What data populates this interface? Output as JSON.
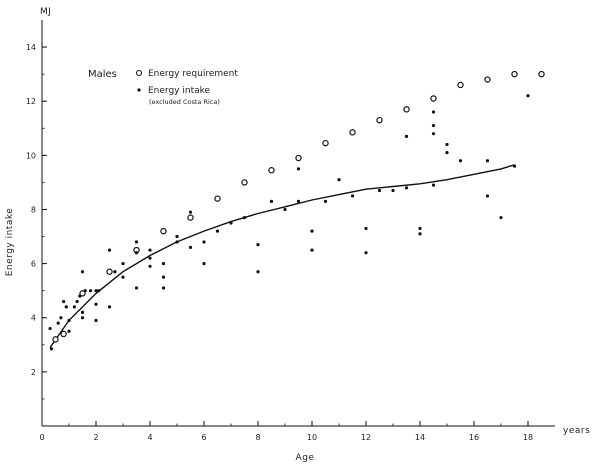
{
  "chart_data": {
    "type": "scatter",
    "unit_label": "MJ",
    "xlabel": "Age",
    "x_unit": "years",
    "ylabel": "Energy intake",
    "xlim": [
      0,
      19
    ],
    "ylim": [
      0,
      15
    ],
    "x_ticks": [
      0,
      2,
      4,
      6,
      8,
      10,
      12,
      14,
      16,
      18
    ],
    "y_ticks": [
      2,
      4,
      6,
      8,
      10,
      12,
      14
    ],
    "legend": {
      "title": "Males",
      "entries": [
        {
          "label": "Energy requirement",
          "marker": "open-circle"
        },
        {
          "label": "Energy intake",
          "marker": "dot",
          "note": "(excluded Costa Rica)"
        }
      ]
    },
    "series": [
      {
        "name": "Energy requirement",
        "marker": "open-circle",
        "points": [
          [
            0.5,
            3.2
          ],
          [
            0.8,
            3.4
          ],
          [
            1.5,
            4.9
          ],
          [
            2.5,
            5.7
          ],
          [
            3.5,
            6.5
          ],
          [
            4.5,
            7.2
          ],
          [
            5.5,
            7.7
          ],
          [
            6.5,
            8.4
          ],
          [
            7.5,
            9.0
          ],
          [
            8.5,
            9.45
          ],
          [
            9.5,
            9.9
          ],
          [
            10.5,
            10.45
          ],
          [
            11.5,
            10.85
          ],
          [
            12.5,
            11.3
          ],
          [
            13.5,
            11.7
          ],
          [
            14.5,
            12.1
          ],
          [
            15.5,
            12.6
          ],
          [
            16.5,
            12.8
          ],
          [
            17.5,
            13.0
          ],
          [
            18.5,
            13.0
          ]
        ]
      },
      {
        "name": "Energy intake",
        "marker": "dot",
        "points": [
          [
            0.3,
            3.6
          ],
          [
            0.35,
            2.85
          ],
          [
            0.6,
            3.8
          ],
          [
            0.7,
            4.0
          ],
          [
            0.8,
            4.6
          ],
          [
            0.9,
            4.4
          ],
          [
            1.0,
            3.9
          ],
          [
            1.0,
            3.5
          ],
          [
            1.2,
            4.4
          ],
          [
            1.3,
            4.6
          ],
          [
            1.4,
            4.8
          ],
          [
            1.5,
            5.7
          ],
          [
            1.5,
            4.2
          ],
          [
            1.5,
            4.0
          ],
          [
            1.6,
            5.0
          ],
          [
            1.8,
            5.0
          ],
          [
            2.0,
            5.0
          ],
          [
            2.0,
            4.5
          ],
          [
            2.0,
            3.9
          ],
          [
            2.1,
            5.0
          ],
          [
            2.5,
            6.5
          ],
          [
            2.5,
            4.4
          ],
          [
            2.7,
            5.7
          ],
          [
            3.0,
            6.0
          ],
          [
            3.0,
            5.5
          ],
          [
            3.5,
            6.8
          ],
          [
            3.5,
            6.4
          ],
          [
            3.5,
            5.1
          ],
          [
            4.0,
            6.5
          ],
          [
            4.0,
            6.2
          ],
          [
            4.0,
            5.9
          ],
          [
            4.5,
            6.0
          ],
          [
            4.5,
            5.5
          ],
          [
            4.5,
            5.1
          ],
          [
            5.0,
            7.0
          ],
          [
            5.0,
            6.8
          ],
          [
            5.5,
            7.9
          ],
          [
            5.5,
            6.6
          ],
          [
            6.0,
            6.8
          ],
          [
            6.0,
            6.0
          ],
          [
            6.5,
            7.2
          ],
          [
            7.0,
            7.5
          ],
          [
            7.5,
            7.7
          ],
          [
            8.0,
            6.7
          ],
          [
            8.0,
            5.7
          ],
          [
            8.5,
            8.3
          ],
          [
            9.0,
            8.0
          ],
          [
            9.5,
            9.5
          ],
          [
            9.5,
            8.3
          ],
          [
            10.0,
            7.2
          ],
          [
            10.0,
            6.5
          ],
          [
            10.5,
            8.3
          ],
          [
            11.0,
            9.1
          ],
          [
            11.5,
            8.5
          ],
          [
            12.0,
            7.3
          ],
          [
            12.0,
            6.4
          ],
          [
            12.5,
            8.7
          ],
          [
            13.0,
            8.7
          ],
          [
            13.5,
            10.7
          ],
          [
            13.5,
            8.8
          ],
          [
            14.0,
            7.3
          ],
          [
            14.0,
            7.1
          ],
          [
            14.5,
            11.6
          ],
          [
            14.5,
            11.1
          ],
          [
            14.5,
            10.8
          ],
          [
            14.5,
            8.9
          ],
          [
            15.0,
            10.4
          ],
          [
            15.0,
            10.1
          ],
          [
            15.5,
            9.8
          ],
          [
            16.5,
            9.8
          ],
          [
            16.5,
            8.5
          ],
          [
            17.0,
            7.7
          ],
          [
            17.5,
            9.6
          ],
          [
            18.0,
            12.2
          ]
        ]
      },
      {
        "name": "Energy intake trend",
        "marker": "line",
        "points": [
          [
            0.3,
            2.9
          ],
          [
            1.0,
            3.9
          ],
          [
            2.0,
            4.9
          ],
          [
            3.0,
            5.7
          ],
          [
            4.0,
            6.3
          ],
          [
            5.0,
            6.8
          ],
          [
            6.0,
            7.2
          ],
          [
            7.0,
            7.55
          ],
          [
            8.0,
            7.85
          ],
          [
            9.0,
            8.1
          ],
          [
            10.0,
            8.35
          ],
          [
            11.0,
            8.55
          ],
          [
            12.0,
            8.75
          ],
          [
            13.0,
            8.85
          ],
          [
            14.0,
            8.95
          ],
          [
            15.0,
            9.1
          ],
          [
            16.0,
            9.3
          ],
          [
            17.0,
            9.5
          ],
          [
            17.5,
            9.65
          ]
        ]
      }
    ]
  }
}
